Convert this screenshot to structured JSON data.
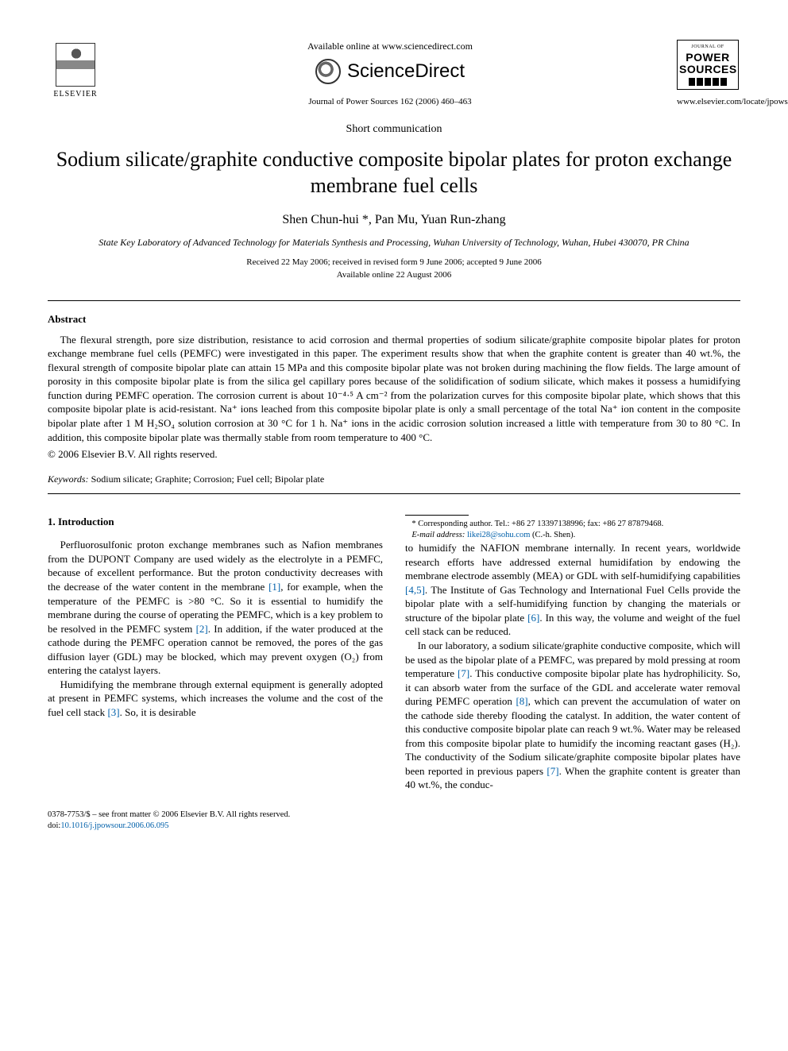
{
  "header": {
    "available_text": "Available online at www.sciencedirect.com",
    "sd_brand": "ScienceDirect",
    "journal_citation": "Journal of Power Sources 162 (2006) 460–463",
    "elsevier_name": "ELSEVIER",
    "power_top": "JOURNAL OF",
    "power_main_1": "POWER",
    "power_main_2": "SOURCES",
    "locate_url": "www.elsevier.com/locate/jpowsour"
  },
  "article": {
    "type": "Short communication",
    "title": "Sodium silicate/graphite conductive composite bipolar plates for proton exchange membrane fuel cells",
    "authors_html": "Shen Chun-hui *, Pan Mu, Yuan Run-zhang",
    "affiliation": "State Key Laboratory of Advanced Technology for Materials Synthesis and Processing, Wuhan University of Technology, Wuhan, Hubei 430070, PR China",
    "received": "Received 22 May 2006; received in revised form 9 June 2006; accepted 9 June 2006",
    "online": "Available online 22 August 2006"
  },
  "abstract": {
    "heading": "Abstract",
    "body": "The flexural strength, pore size distribution, resistance to acid corrosion and thermal properties of sodium silicate/graphite composite bipolar plates for proton exchange membrane fuel cells (PEMFC) were investigated in this paper. The experiment results show that when the graphite content is greater than 40 wt.%, the flexural strength of composite bipolar plate can attain 15 MPa and this composite bipolar plate was not broken during machining the flow fields. The large amount of porosity in this composite bipolar plate is from the silica gel capillary pores because of the solidification of sodium silicate, which makes it possess a humidifying function during PEMFC operation. The corrosion current is about 10⁻⁴·⁵ A cm⁻² from the polarization curves for this composite bipolar plate, which shows that this composite bipolar plate is acid-resistant. Na⁺ ions leached from this composite bipolar plate is only a small percentage of the total Na⁺ ion content in the composite bipolar plate after 1 M H₂SO₄ solution corrosion at 30 °C for 1 h. Na⁺ ions in the acidic corrosion solution increased a little with temperature from 30 to 80 °C. In addition, this composite bipolar plate was thermally stable from room temperature to 400 °C.",
    "copyright": "© 2006 Elsevier B.V. All rights reserved."
  },
  "keywords": {
    "label": "Keywords:",
    "list": "Sodium silicate; Graphite; Corrosion; Fuel cell; Bipolar plate"
  },
  "section1": {
    "heading": "1. Introduction",
    "p1_a": "Perfluorosulfonic proton exchange membranes such as Nafion membranes from the DUPONT Company are used widely as the electrolyte in a PEMFC, because of excellent performance. But the proton conductivity decreases with the decrease of the water content in the membrane ",
    "ref1": "[1]",
    "p1_b": ", for example, when the temperature of the PEMFC is >80 °C. So it is essential to humidify the membrane during the course of operating the PEMFC, which is a key problem to be resolved in the PEMFC system ",
    "ref2": "[2]",
    "p1_c": ". In addition, if the water produced at the cathode during the PEMFC operation cannot be removed, the pores of the gas diffusion layer (GDL) may be blocked, which may prevent oxygen (O₂) from entering the catalyst layers.",
    "p2_a": "Humidifying the membrane through external equipment is generally adopted at present in PEMFC systems, which increases the volume and the cost of the fuel cell stack ",
    "ref3": "[3]",
    "p2_b": ". So, it is desirable",
    "p2_c": "to humidify the NAFION membrane internally. In recent years, worldwide research efforts have addressed external humidifation by endowing the membrane electrode assembly (MEA) or GDL with self-humidifying capabilities ",
    "ref45": "[4,5]",
    "p2_d": ". The Institute of Gas Technology and International Fuel Cells provide the bipolar plate with a self-humidifying function by changing the materials or structure of the bipolar plate ",
    "ref6": "[6]",
    "p2_e": ". In this way, the volume and weight of the fuel cell stack can be reduced.",
    "p3_a": "In our laboratory, a sodium silicate/graphite conductive composite, which will be used as the bipolar plate of a PEMFC, was prepared by mold pressing at room temperature ",
    "ref7": "[7]",
    "p3_b": ". This conductive composite bipolar plate has hydrophilicity. So, it can absorb water from the surface of the GDL and accelerate water removal during PEMFC operation ",
    "ref8": "[8]",
    "p3_c": ", which can prevent the accumulation of water on the cathode side thereby flooding the catalyst. In addition, the water content of this conductive composite bipolar plate can reach 9 wt.%. Water may be released from this composite bipolar plate to humidify the incoming reactant gases (H₂). The conductivity of the Sodium silicate/graphite composite bipolar plates have been reported in previous papers ",
    "ref7b": "[7]",
    "p3_d": ". When the graphite content is greater than 40 wt.%, the conduc-"
  },
  "footnote": {
    "corr": "* Corresponding author. Tel.: +86 27 13397138996; fax: +86 27 87879468.",
    "email_label": "E-mail address:",
    "email": "likei28@sohu.com",
    "email_tail": "(C.-h. Shen)."
  },
  "footer": {
    "line1": "0378-7753/$ – see front matter © 2006 Elsevier B.V. All rights reserved.",
    "doi_label": "doi:",
    "doi": "10.1016/j.jpowsour.2006.06.095"
  },
  "colors": {
    "link": "#0060aa",
    "text": "#000000",
    "background": "#ffffff"
  }
}
